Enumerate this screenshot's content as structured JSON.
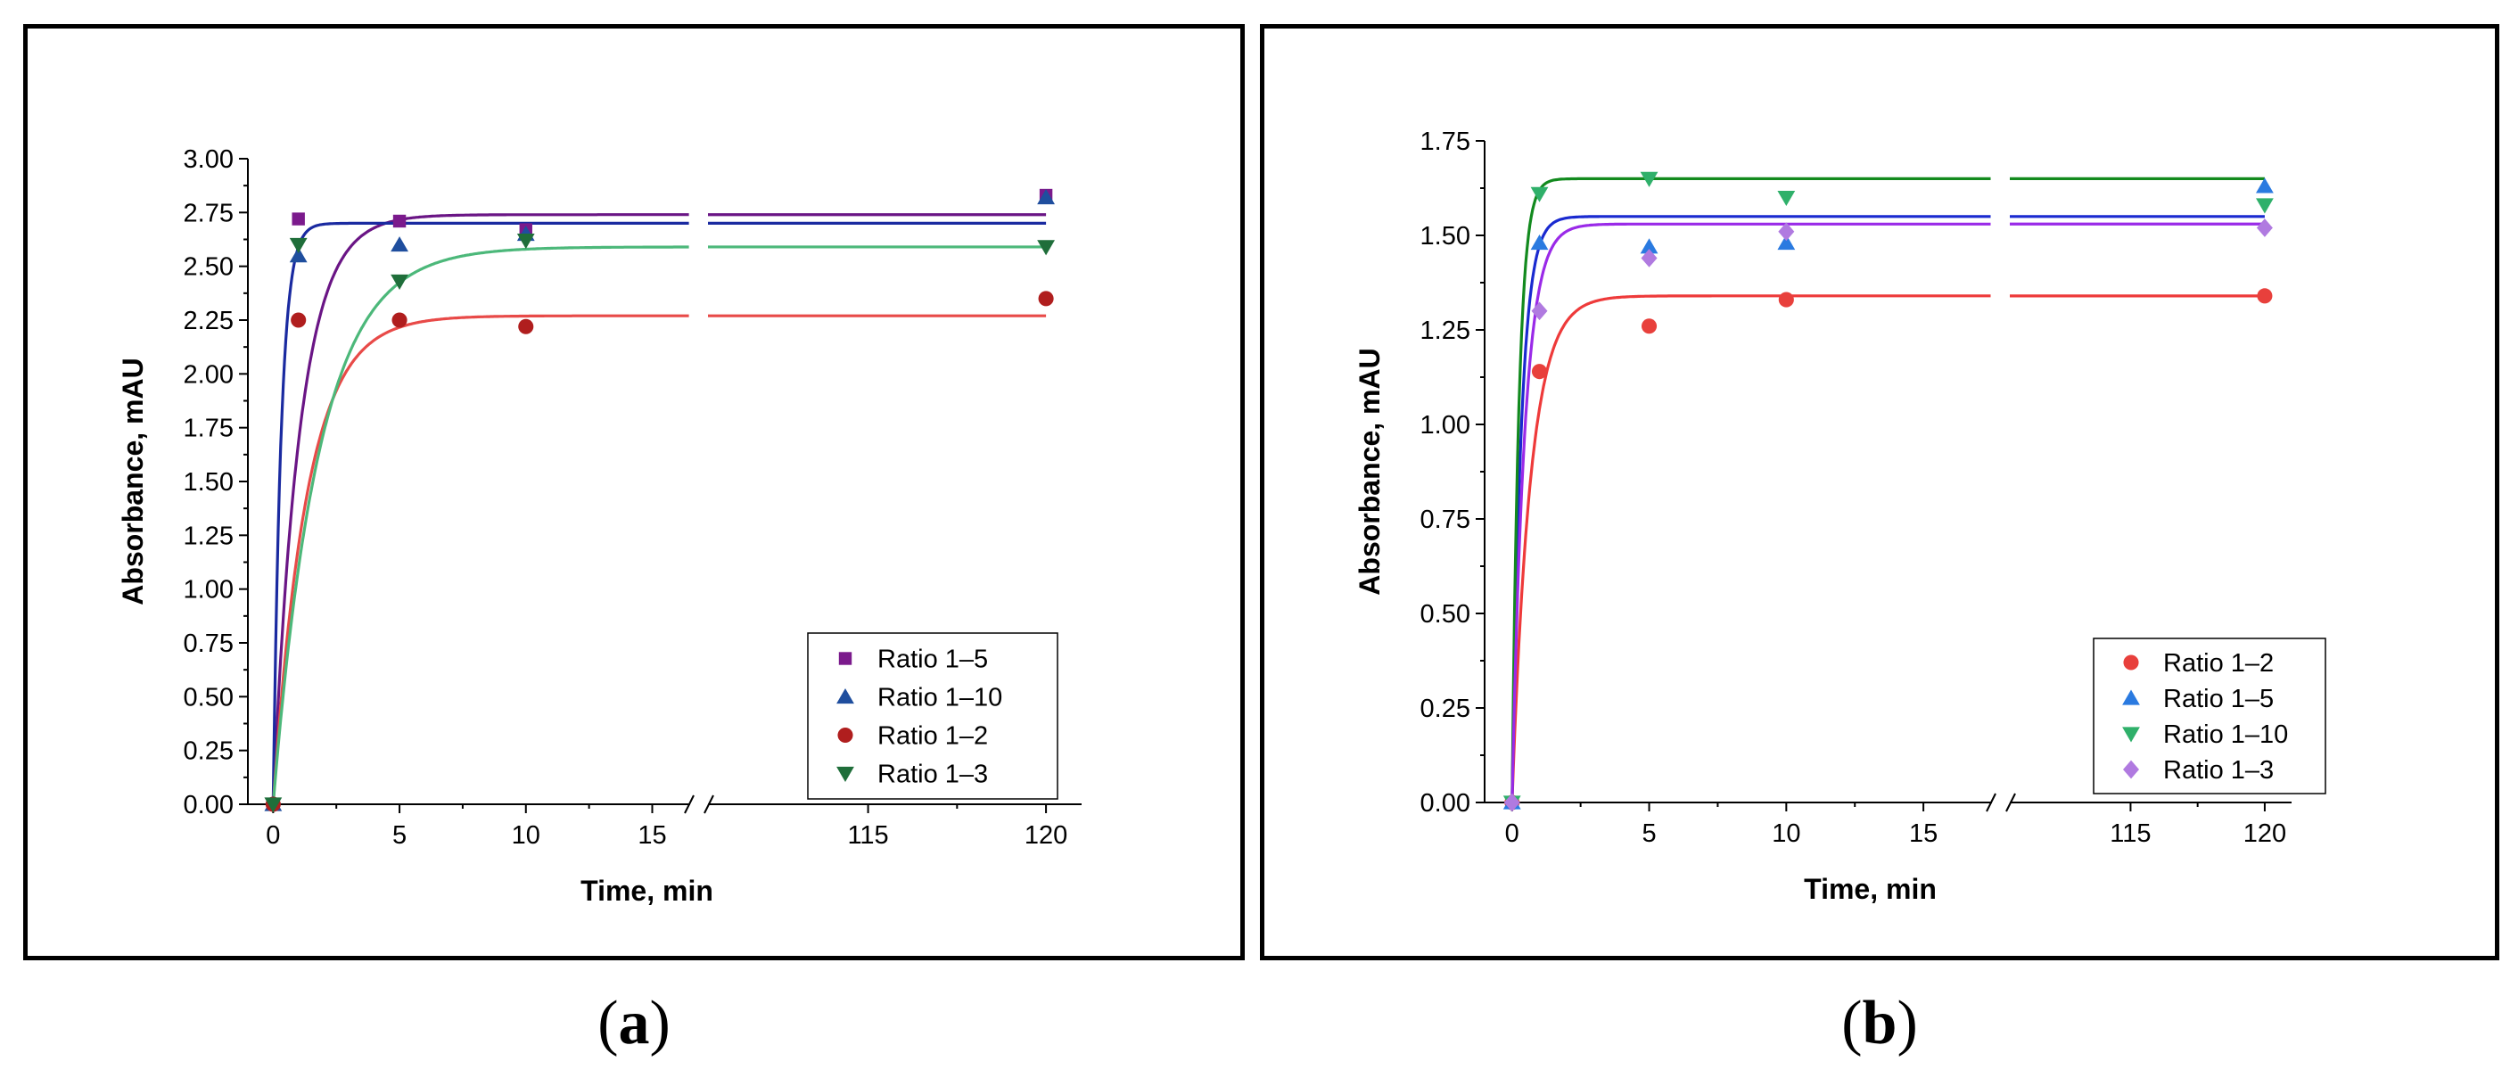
{
  "captions": {
    "a": "a",
    "b": "b"
  },
  "chart_data": [
    {
      "type": "scatter",
      "panel": "a",
      "title": "",
      "xlabel": "Time, min",
      "ylabel": "Absorbance, mAU",
      "ylim": [
        0,
        3.0
      ],
      "yticks": [
        0.0,
        0.25,
        0.5,
        0.75,
        1.0,
        1.25,
        1.5,
        1.75,
        2.0,
        2.25,
        2.5,
        2.75,
        3.0
      ],
      "ytick_labels": [
        "0.00",
        "0.25",
        "0.50",
        "0.75",
        "1.00",
        "1.25",
        "1.50",
        "1.75",
        "2.00",
        "2.25",
        "2.50",
        "2.75",
        "3.00"
      ],
      "x_segments": [
        {
          "range": [
            -1,
            16.5
          ],
          "ticks": [
            0,
            5,
            10,
            15
          ],
          "tick_labels": [
            "0",
            "5",
            "10",
            "15"
          ]
        },
        {
          "range": [
            110.5,
            121
          ],
          "ticks": [
            115,
            120
          ],
          "tick_labels": [
            "115",
            "120"
          ]
        }
      ],
      "axis_break": "//",
      "legend_position": "bottom-right",
      "series": [
        {
          "name": "Ratio 1–5",
          "marker": "square",
          "color": "#7b1a8c",
          "x": [
            0,
            1,
            5,
            10,
            120
          ],
          "y": [
            0.0,
            2.72,
            2.71,
            2.67,
            2.83
          ],
          "fit": {
            "plateau": 2.74,
            "k": 0.95
          }
        },
        {
          "name": "Ratio 1–10",
          "marker": "triangle-up",
          "color": "#1f4e9e",
          "x": [
            0,
            1,
            5,
            10,
            120
          ],
          "y": [
            0.0,
            2.55,
            2.6,
            2.65,
            2.82
          ],
          "fit": {
            "plateau": 2.7,
            "k": 3.2
          }
        },
        {
          "name": "Ratio 1–2",
          "marker": "circle",
          "color": "#b01e1e",
          "x": [
            0,
            1,
            5,
            10,
            120
          ],
          "y": [
            0.0,
            2.25,
            2.25,
            2.22,
            2.35
          ],
          "fit": {
            "plateau": 2.27,
            "k": 0.75
          }
        },
        {
          "name": "Ratio 1–3",
          "marker": "triangle-down",
          "color": "#1f6e3a",
          "x": [
            0,
            1,
            5,
            10,
            120
          ],
          "y": [
            0.0,
            2.6,
            2.43,
            2.62,
            2.59
          ],
          "fit": {
            "plateau": 2.59,
            "k": 0.55
          }
        }
      ],
      "fit_colors": {
        "Ratio 1–5": "#6a1585",
        "Ratio 1–10": "#1a2aa0",
        "Ratio 1–2": "#e84a48",
        "Ratio 1–3": "#4cb87a"
      }
    },
    {
      "type": "scatter",
      "panel": "b",
      "title": "",
      "xlabel": "Time, min",
      "ylabel": "Absorbance, mAU",
      "ylim": [
        0,
        1.75
      ],
      "yticks": [
        0.0,
        0.25,
        0.5,
        0.75,
        1.0,
        1.25,
        1.5,
        1.75
      ],
      "ytick_labels": [
        "0.00",
        "0.25",
        "0.50",
        "0.75",
        "1.00",
        "1.25",
        "1.50",
        "1.75"
      ],
      "x_segments": [
        {
          "range": [
            -1,
            17.5
          ],
          "ticks": [
            0,
            5,
            10,
            15
          ],
          "tick_labels": [
            "0",
            "5",
            "10",
            "15"
          ]
        },
        {
          "range": [
            110.5,
            121
          ],
          "ticks": [
            115,
            120
          ],
          "tick_labels": [
            "115",
            "120"
          ]
        }
      ],
      "axis_break": "//",
      "legend_position": "bottom-right",
      "series": [
        {
          "name": "Ratio 1–2",
          "marker": "circle",
          "color": "#e8403c",
          "x": [
            0,
            1,
            5,
            10,
            120
          ],
          "y": [
            0.0,
            1.14,
            1.26,
            1.33,
            1.34
          ],
          "fit": {
            "plateau": 1.34,
            "k": 1.5
          }
        },
        {
          "name": "Ratio 1–5",
          "marker": "triangle-up",
          "color": "#2a7ae0",
          "x": [
            0,
            1,
            5,
            10,
            120
          ],
          "y": [
            0.0,
            1.48,
            1.47,
            1.48,
            1.63
          ],
          "fit": {
            "plateau": 1.55,
            "k": 3.0
          }
        },
        {
          "name": "Ratio 1–10",
          "marker": "triangle-down",
          "color": "#2fb06a",
          "x": [
            0,
            1,
            5,
            10,
            120
          ],
          "y": [
            0.0,
            1.61,
            1.65,
            1.6,
            1.58
          ],
          "fit": {
            "plateau": 1.65,
            "k": 4.0
          }
        },
        {
          "name": "Ratio 1–3",
          "marker": "diamond",
          "color": "#b07ae0",
          "x": [
            0,
            1,
            5,
            10,
            120
          ],
          "y": [
            0.0,
            1.3,
            1.44,
            1.51,
            1.52
          ],
          "fit": {
            "plateau": 1.53,
            "k": 2.2
          }
        }
      ],
      "fit_colors": {
        "Ratio 1–2": "#ee3a3a",
        "Ratio 1–5": "#1a2ad0",
        "Ratio 1–10": "#128a1e",
        "Ratio 1–3": "#9a2ae8"
      }
    }
  ]
}
